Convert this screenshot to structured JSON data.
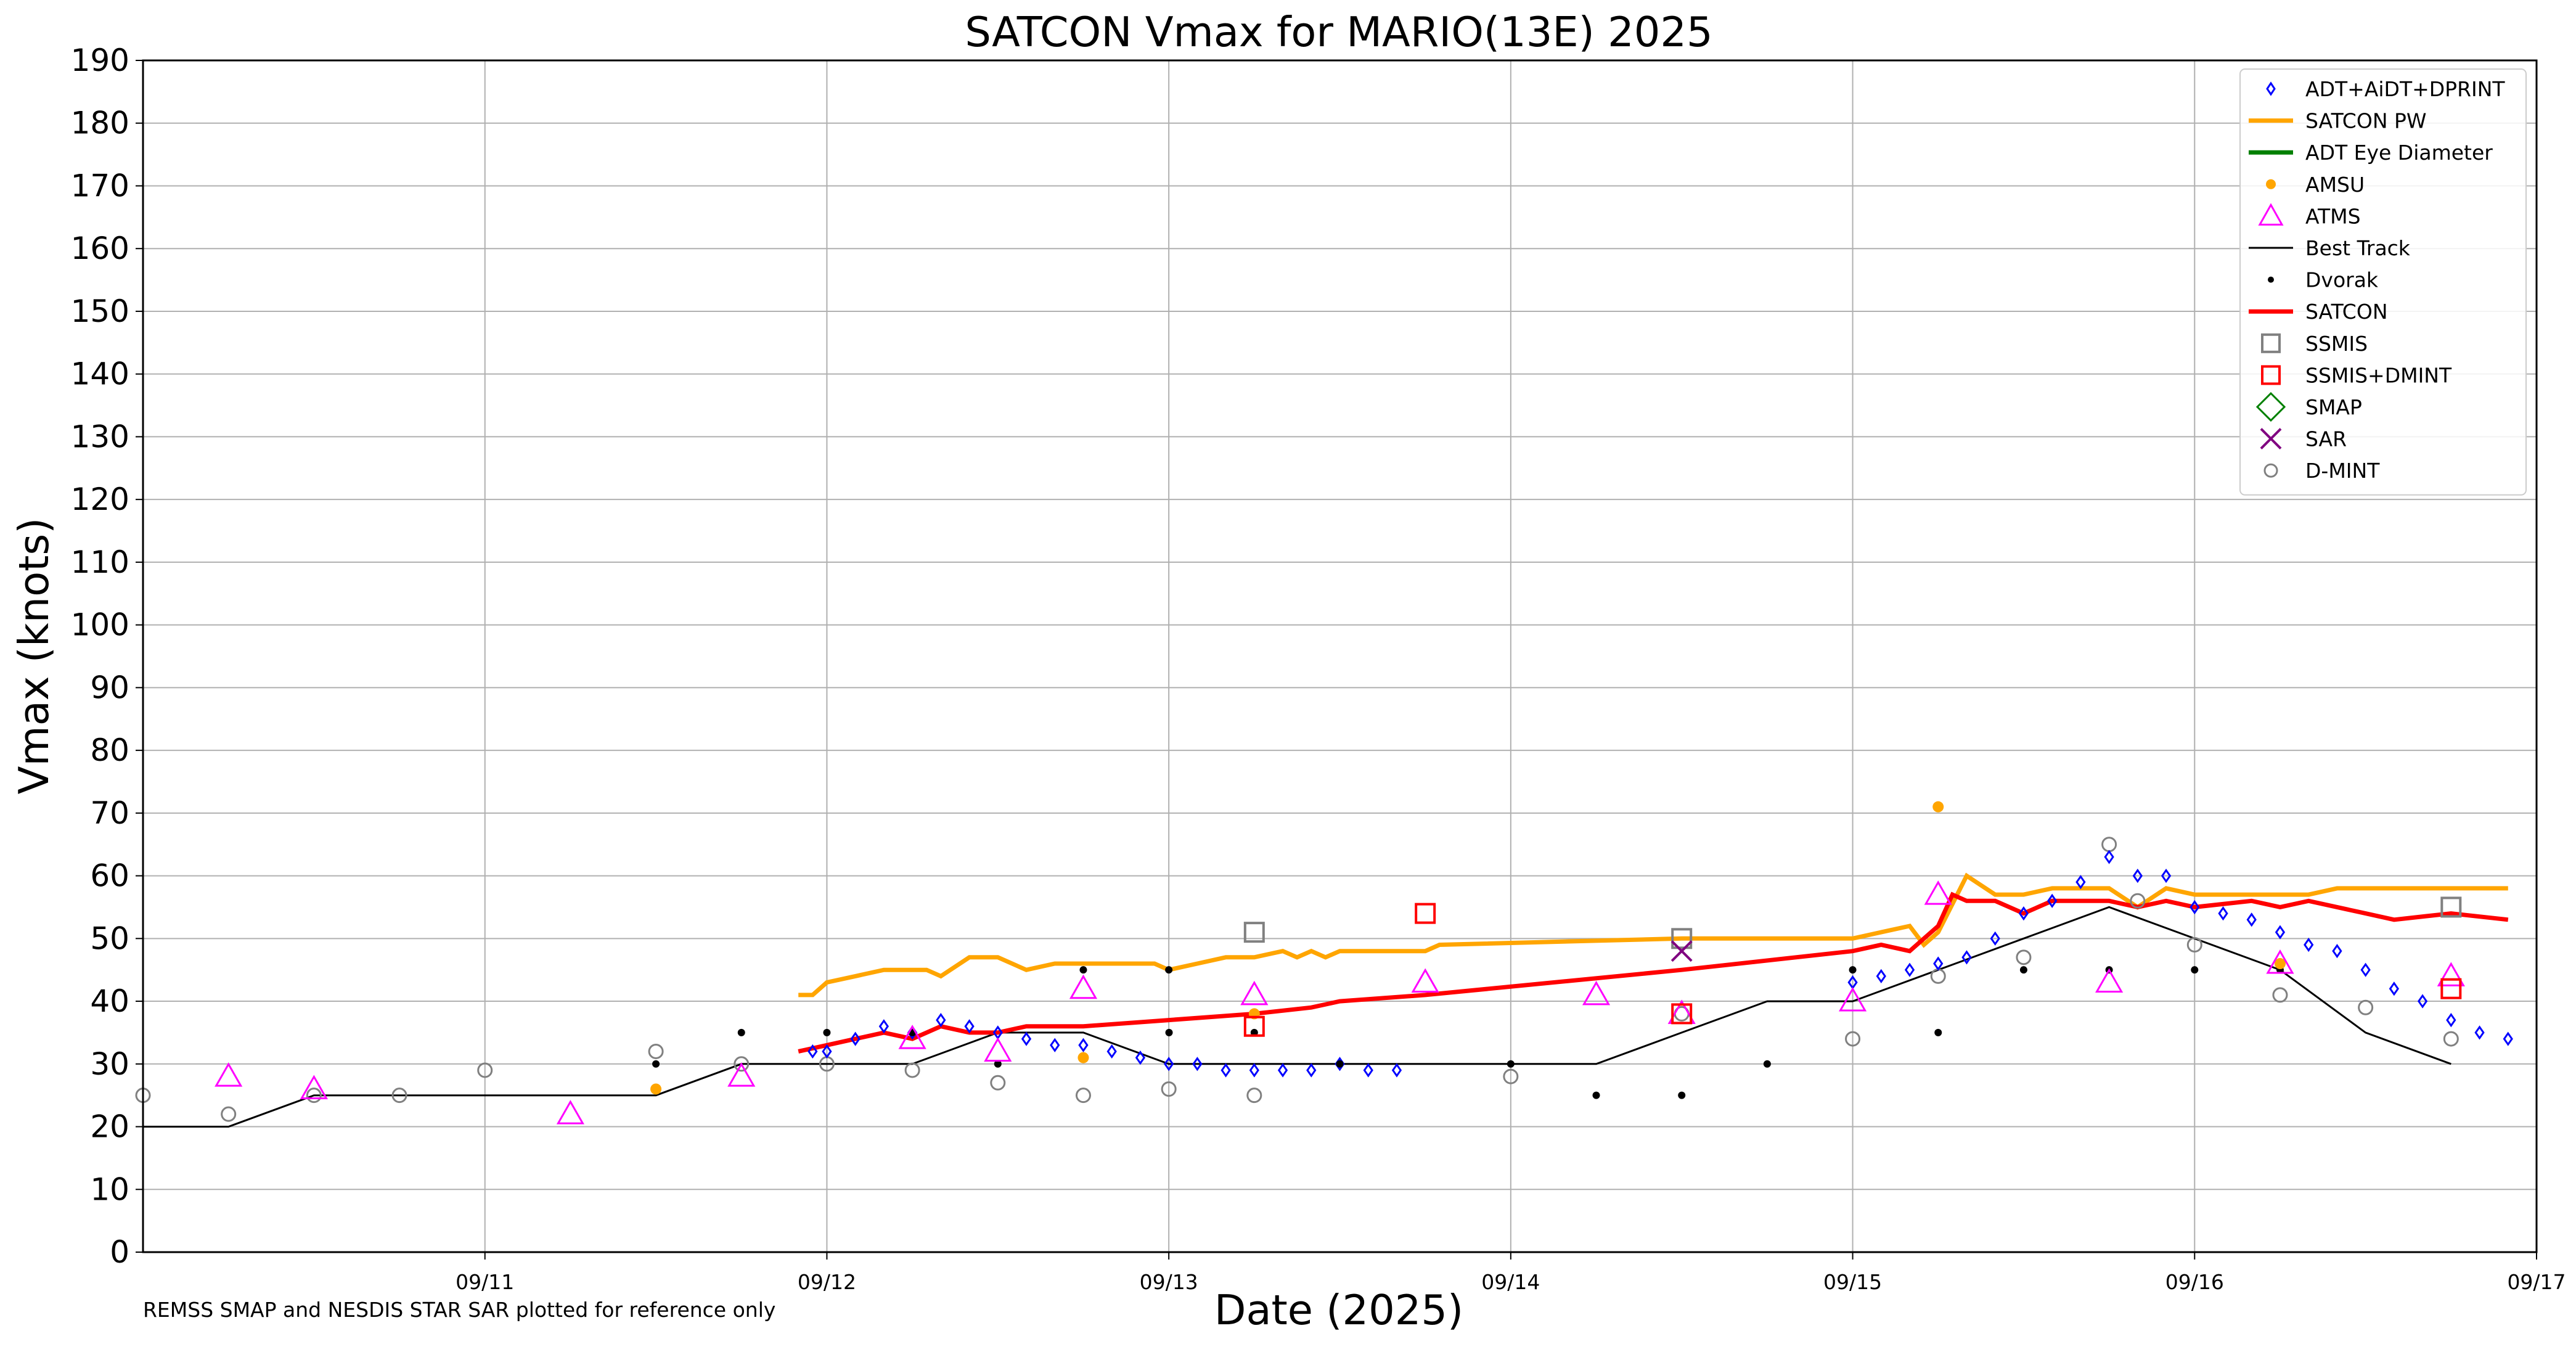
{
  "chart_data": {
    "type": "scatter",
    "title": "SATCON Vmax for MARIO(13E) 2025",
    "xlabel": "Date (2025)",
    "ylabel": "Vmax (knots)",
    "xlim": [
      "2025-09-10T00:00",
      "2025-09-17T00:00"
    ],
    "ylim": [
      0,
      190
    ],
    "yticks": [
      0,
      10,
      20,
      30,
      40,
      50,
      60,
      70,
      80,
      90,
      100,
      110,
      120,
      130,
      140,
      150,
      160,
      170,
      180,
      190
    ],
    "xticks": [
      "2025-09-11",
      "2025-09-12",
      "2025-09-13",
      "2025-09-14",
      "2025-09-15",
      "2025-09-16",
      "2025-09-17"
    ],
    "xtick_labels": [
      "09/11",
      "09/12",
      "09/13",
      "09/14",
      "09/15",
      "09/16",
      "09/17"
    ],
    "grid": true,
    "legend_position": "top-right",
    "footnote": "REMSS SMAP and NESDIS STAR SAR plotted for reference only",
    "colors": {
      "adt": "#0000ff",
      "satcon_pw": "#ffa500",
      "adt_eye": "#008000",
      "amsu": "#ffa500",
      "atms": "#ff00ff",
      "best_track": "#000000",
      "dvorak": "#000000",
      "satcon": "#ff0000",
      "ssmis": "#808080",
      "ssmis_dmint": "#ff0000",
      "smap": "#008000",
      "sar": "#800080",
      "dmint": "#808080"
    },
    "legend": [
      {
        "key": "adt",
        "label": "ADT+AiDT+DPRINT",
        "marker": "diamond"
      },
      {
        "key": "satcon_pw",
        "label": "SATCON PW",
        "marker": "line"
      },
      {
        "key": "adt_eye",
        "label": "ADT Eye Diameter",
        "marker": "line"
      },
      {
        "key": "amsu",
        "label": "AMSU",
        "marker": "dot"
      },
      {
        "key": "atms",
        "label": "ATMS",
        "marker": "triangle"
      },
      {
        "key": "best_track",
        "label": "Best Track",
        "marker": "thinline"
      },
      {
        "key": "dvorak",
        "label": "Dvorak",
        "marker": "smalldot"
      },
      {
        "key": "satcon",
        "label": "SATCON",
        "marker": "line"
      },
      {
        "key": "ssmis",
        "label": "SSMIS",
        "marker": "square"
      },
      {
        "key": "ssmis_dmint",
        "label": "SSMIS+DMINT",
        "marker": "square"
      },
      {
        "key": "smap",
        "label": "SMAP",
        "marker": "bigdiamond"
      },
      {
        "key": "sar",
        "label": "SAR",
        "marker": "x"
      },
      {
        "key": "dmint",
        "label": "D-MINT",
        "marker": "circle"
      }
    ],
    "series": {
      "best_track": [
        [
          "2025-09-10T00:00",
          20
        ],
        [
          "2025-09-10T06:00",
          20
        ],
        [
          "2025-09-10T12:00",
          25
        ],
        [
          "2025-09-10T18:00",
          25
        ],
        [
          "2025-09-11T00:00",
          25
        ],
        [
          "2025-09-11T06:00",
          25
        ],
        [
          "2025-09-11T12:00",
          25
        ],
        [
          "2025-09-11T18:00",
          30
        ],
        [
          "2025-09-12T00:00",
          30
        ],
        [
          "2025-09-12T06:00",
          30
        ],
        [
          "2025-09-12T12:00",
          35
        ],
        [
          "2025-09-12T18:00",
          35
        ],
        [
          "2025-09-13T00:00",
          30
        ],
        [
          "2025-09-13T06:00",
          30
        ],
        [
          "2025-09-13T12:00",
          30
        ],
        [
          "2025-09-13T18:00",
          30
        ],
        [
          "2025-09-14T00:00",
          30
        ],
        [
          "2025-09-14T06:00",
          30
        ],
        [
          "2025-09-14T12:00",
          35
        ],
        [
          "2025-09-14T18:00",
          40
        ],
        [
          "2025-09-15T00:00",
          40
        ],
        [
          "2025-09-15T06:00",
          45
        ],
        [
          "2025-09-15T12:00",
          50
        ],
        [
          "2025-09-15T18:00",
          55
        ],
        [
          "2025-09-16T00:00",
          50
        ],
        [
          "2025-09-16T06:00",
          45
        ],
        [
          "2025-09-16T12:00",
          35
        ],
        [
          "2025-09-16T18:00",
          30
        ]
      ],
      "satcon_pw": [
        [
          "2025-09-11T22:00",
          41
        ],
        [
          "2025-09-11T23:00",
          41
        ],
        [
          "2025-09-12T00:00",
          43
        ],
        [
          "2025-09-12T02:00",
          44
        ],
        [
          "2025-09-12T04:00",
          45
        ],
        [
          "2025-09-12T07:00",
          45
        ],
        [
          "2025-09-12T08:00",
          44
        ],
        [
          "2025-09-12T10:00",
          47
        ],
        [
          "2025-09-12T12:00",
          47
        ],
        [
          "2025-09-12T14:00",
          45
        ],
        [
          "2025-09-12T16:00",
          46
        ],
        [
          "2025-09-12T18:00",
          46
        ],
        [
          "2025-09-12T22:00",
          46
        ],
        [
          "2025-09-12T23:00",
          46
        ],
        [
          "2025-09-13T00:00",
          45
        ],
        [
          "2025-09-13T02:00",
          46
        ],
        [
          "2025-09-13T04:00",
          47
        ],
        [
          "2025-09-13T06:00",
          47
        ],
        [
          "2025-09-13T08:00",
          48
        ],
        [
          "2025-09-13T09:00",
          47
        ],
        [
          "2025-09-13T10:00",
          48
        ],
        [
          "2025-09-13T11:00",
          47
        ],
        [
          "2025-09-13T12:00",
          48
        ],
        [
          "2025-09-13T18:00",
          48
        ],
        [
          "2025-09-13T19:00",
          49
        ],
        [
          "2025-09-14T12:00",
          50
        ],
        [
          "2025-09-15T00:00",
          50
        ],
        [
          "2025-09-15T02:00",
          51
        ],
        [
          "2025-09-15T04:00",
          52
        ],
        [
          "2025-09-15T05:00",
          49
        ],
        [
          "2025-09-15T06:00",
          51
        ],
        [
          "2025-09-15T08:00",
          60
        ],
        [
          "2025-09-15T10:00",
          57
        ],
        [
          "2025-09-15T12:00",
          57
        ],
        [
          "2025-09-15T14:00",
          58
        ],
        [
          "2025-09-15T16:00",
          58
        ],
        [
          "2025-09-15T18:00",
          58
        ],
        [
          "2025-09-15T20:00",
          55
        ],
        [
          "2025-09-15T22:00",
          58
        ],
        [
          "2025-09-16T00:00",
          57
        ],
        [
          "2025-09-16T04:00",
          57
        ],
        [
          "2025-09-16T06:00",
          57
        ],
        [
          "2025-09-16T08:00",
          57
        ],
        [
          "2025-09-16T10:00",
          58
        ],
        [
          "2025-09-16T12:00",
          58
        ],
        [
          "2025-09-16T14:00",
          58
        ],
        [
          "2025-09-16T18:00",
          58
        ],
        [
          "2025-09-16T22:00",
          58
        ]
      ],
      "satcon": [
        [
          "2025-09-11T22:00",
          32
        ],
        [
          "2025-09-12T00:00",
          33
        ],
        [
          "2025-09-12T02:00",
          34
        ],
        [
          "2025-09-12T04:00",
          35
        ],
        [
          "2025-09-12T06:00",
          34
        ],
        [
          "2025-09-12T08:00",
          36
        ],
        [
          "2025-09-12T10:00",
          35
        ],
        [
          "2025-09-12T12:00",
          35
        ],
        [
          "2025-09-12T14:00",
          36
        ],
        [
          "2025-09-12T18:00",
          36
        ],
        [
          "2025-09-13T00:00",
          37
        ],
        [
          "2025-09-13T06:00",
          38
        ],
        [
          "2025-09-13T10:00",
          39
        ],
        [
          "2025-09-13T12:00",
          40
        ],
        [
          "2025-09-13T18:00",
          41
        ],
        [
          "2025-09-14T12:00",
          45
        ],
        [
          "2025-09-15T00:00",
          48
        ],
        [
          "2025-09-15T02:00",
          49
        ],
        [
          "2025-09-15T04:00",
          48
        ],
        [
          "2025-09-15T06:00",
          52
        ],
        [
          "2025-09-15T07:00",
          57
        ],
        [
          "2025-09-15T08:00",
          56
        ],
        [
          "2025-09-15T10:00",
          56
        ],
        [
          "2025-09-15T12:00",
          54
        ],
        [
          "2025-09-15T14:00",
          56
        ],
        [
          "2025-09-15T18:00",
          56
        ],
        [
          "2025-09-15T20:00",
          55
        ],
        [
          "2025-09-15T22:00",
          56
        ],
        [
          "2025-09-16T00:00",
          55
        ],
        [
          "2025-09-16T04:00",
          56
        ],
        [
          "2025-09-16T06:00",
          55
        ],
        [
          "2025-09-16T08:00",
          56
        ],
        [
          "2025-09-16T12:00",
          54
        ],
        [
          "2025-09-16T14:00",
          53
        ],
        [
          "2025-09-16T18:00",
          54
        ],
        [
          "2025-09-16T22:00",
          53
        ]
      ],
      "adt": [
        [
          "2025-09-11T23:00",
          32
        ],
        [
          "2025-09-12T00:00",
          32
        ],
        [
          "2025-09-12T02:00",
          34
        ],
        [
          "2025-09-12T04:00",
          36
        ],
        [
          "2025-09-12T06:00",
          35
        ],
        [
          "2025-09-12T08:00",
          37
        ],
        [
          "2025-09-12T10:00",
          36
        ],
        [
          "2025-09-12T12:00",
          35
        ],
        [
          "2025-09-12T14:00",
          34
        ],
        [
          "2025-09-12T16:00",
          33
        ],
        [
          "2025-09-12T18:00",
          33
        ],
        [
          "2025-09-12T20:00",
          32
        ],
        [
          "2025-09-12T22:00",
          31
        ],
        [
          "2025-09-13T00:00",
          30
        ],
        [
          "2025-09-13T02:00",
          30
        ],
        [
          "2025-09-13T04:00",
          29
        ],
        [
          "2025-09-13T06:00",
          29
        ],
        [
          "2025-09-13T08:00",
          29
        ],
        [
          "2025-09-13T10:00",
          29
        ],
        [
          "2025-09-13T12:00",
          30
        ],
        [
          "2025-09-13T14:00",
          29
        ],
        [
          "2025-09-13T16:00",
          29
        ],
        [
          "2025-09-15T00:00",
          43
        ],
        [
          "2025-09-15T02:00",
          44
        ],
        [
          "2025-09-15T04:00",
          45
        ],
        [
          "2025-09-15T06:00",
          46
        ],
        [
          "2025-09-15T08:00",
          47
        ],
        [
          "2025-09-15T10:00",
          50
        ],
        [
          "2025-09-15T12:00",
          54
        ],
        [
          "2025-09-15T14:00",
          56
        ],
        [
          "2025-09-15T16:00",
          59
        ],
        [
          "2025-09-15T18:00",
          63
        ],
        [
          "2025-09-15T20:00",
          60
        ],
        [
          "2025-09-15T22:00",
          60
        ],
        [
          "2025-09-16T00:00",
          55
        ],
        [
          "2025-09-16T02:00",
          54
        ],
        [
          "2025-09-16T04:00",
          53
        ],
        [
          "2025-09-16T06:00",
          51
        ],
        [
          "2025-09-16T08:00",
          49
        ],
        [
          "2025-09-16T10:00",
          48
        ],
        [
          "2025-09-16T12:00",
          45
        ],
        [
          "2025-09-16T14:00",
          42
        ],
        [
          "2025-09-16T16:00",
          40
        ],
        [
          "2025-09-16T18:00",
          37
        ],
        [
          "2025-09-16T20:00",
          35
        ],
        [
          "2025-09-16T22:00",
          34
        ]
      ],
      "dvorak": [
        [
          "2025-09-11T12:00",
          30
        ],
        [
          "2025-09-11T18:00",
          35
        ],
        [
          "2025-09-12T00:00",
          35
        ],
        [
          "2025-09-12T06:00",
          35
        ],
        [
          "2025-09-12T12:00",
          30
        ],
        [
          "2025-09-12T18:00",
          45
        ],
        [
          "2025-09-13T00:00",
          45
        ],
        [
          "2025-09-13T00:01",
          35
        ],
        [
          "2025-09-13T06:00",
          35
        ],
        [
          "2025-09-13T12:00",
          30
        ],
        [
          "2025-09-14T00:00",
          30
        ],
        [
          "2025-09-14T06:00",
          25
        ],
        [
          "2025-09-14T12:00",
          25
        ],
        [
          "2025-09-14T18:00",
          30
        ],
        [
          "2025-09-15T00:00",
          45
        ],
        [
          "2025-09-15T06:00",
          35
        ],
        [
          "2025-09-15T12:00",
          45
        ],
        [
          "2025-09-15T18:00",
          45
        ],
        [
          "2025-09-16T00:00",
          45
        ],
        [
          "2025-09-16T06:00",
          45
        ]
      ],
      "dmint": [
        [
          "2025-09-10T00:00",
          25
        ],
        [
          "2025-09-10T06:00",
          22
        ],
        [
          "2025-09-10T12:00",
          25
        ],
        [
          "2025-09-10T18:00",
          25
        ],
        [
          "2025-09-11T00:00",
          29
        ],
        [
          "2025-09-11T12:00",
          32
        ],
        [
          "2025-09-11T18:00",
          30
        ],
        [
          "2025-09-12T00:00",
          30
        ],
        [
          "2025-09-12T06:00",
          29
        ],
        [
          "2025-09-12T12:00",
          27
        ],
        [
          "2025-09-12T18:00",
          25
        ],
        [
          "2025-09-13T00:00",
          26
        ],
        [
          "2025-09-13T06:00",
          25
        ],
        [
          "2025-09-14T00:00",
          28
        ],
        [
          "2025-09-14T12:00",
          38
        ],
        [
          "2025-09-15T00:00",
          34
        ],
        [
          "2025-09-15T06:00",
          44
        ],
        [
          "2025-09-15T12:00",
          47
        ],
        [
          "2025-09-15T18:00",
          65
        ],
        [
          "2025-09-15T20:00",
          56
        ],
        [
          "2025-09-16T00:00",
          49
        ],
        [
          "2025-09-16T06:00",
          41
        ],
        [
          "2025-09-16T12:00",
          39
        ],
        [
          "2025-09-16T18:00",
          34
        ]
      ],
      "atms": [
        [
          "2025-09-10T06:00",
          28
        ],
        [
          "2025-09-10T12:00",
          26
        ],
        [
          "2025-09-11T06:00",
          22
        ],
        [
          "2025-09-11T18:00",
          28
        ],
        [
          "2025-09-12T06:00",
          34
        ],
        [
          "2025-09-12T12:00",
          32
        ],
        [
          "2025-09-12T18:00",
          42
        ],
        [
          "2025-09-13T06:00",
          41
        ],
        [
          "2025-09-13T18:00",
          43
        ],
        [
          "2025-09-14T06:00",
          41
        ],
        [
          "2025-09-14T12:00",
          38
        ],
        [
          "2025-09-15T00:00",
          40
        ],
        [
          "2025-09-15T06:00",
          57
        ],
        [
          "2025-09-15T18:00",
          43
        ],
        [
          "2025-09-16T06:00",
          46
        ],
        [
          "2025-09-16T18:00",
          44
        ]
      ],
      "amsu": [
        [
          "2025-09-11T12:00",
          26
        ],
        [
          "2025-09-12T18:00",
          31
        ],
        [
          "2025-09-13T06:00",
          38
        ],
        [
          "2025-09-15T06:00",
          71
        ],
        [
          "2025-09-16T06:00",
          46
        ]
      ],
      "ssmis": [
        [
          "2025-09-13T06:00",
          51
        ],
        [
          "2025-09-14T12:00",
          50
        ],
        [
          "2025-09-16T18:00",
          55
        ]
      ],
      "ssmis_dmint": [
        [
          "2025-09-13T06:00",
          36
        ],
        [
          "2025-09-13T18:00",
          54
        ],
        [
          "2025-09-14T12:00",
          38
        ],
        [
          "2025-09-16T18:00",
          42
        ]
      ],
      "sar": [
        [
          "2025-09-14T12:00",
          48
        ]
      ]
    }
  }
}
